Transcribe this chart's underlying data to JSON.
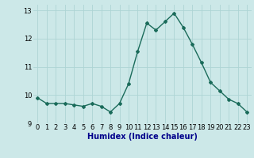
{
  "x": [
    0,
    1,
    2,
    3,
    4,
    5,
    6,
    7,
    8,
    9,
    10,
    11,
    12,
    13,
    14,
    15,
    16,
    17,
    18,
    19,
    20,
    21,
    22,
    23
  ],
  "y": [
    9.9,
    9.7,
    9.7,
    9.7,
    9.65,
    9.6,
    9.7,
    9.6,
    9.4,
    9.7,
    10.4,
    11.55,
    12.55,
    12.3,
    12.6,
    12.9,
    12.4,
    11.8,
    11.15,
    10.45,
    10.15,
    9.85,
    9.7,
    9.4
  ],
  "xlabel": "Humidex (Indice chaleur)",
  "xlim": [
    -0.5,
    23.5
  ],
  "ylim": [
    9.0,
    13.2
  ],
  "yticks": [
    9,
    10,
    11,
    12,
    13
  ],
  "xticks": [
    0,
    1,
    2,
    3,
    4,
    5,
    6,
    7,
    8,
    9,
    10,
    11,
    12,
    13,
    14,
    15,
    16,
    17,
    18,
    19,
    20,
    21,
    22,
    23
  ],
  "line_color": "#1a6b5a",
  "bg_color": "#cce8e8",
  "grid_color": "#aed4d4",
  "marker": "D",
  "marker_size": 2.0,
  "line_width": 1.0,
  "tick_fontsize": 6.0,
  "xlabel_fontsize": 7.0,
  "xlabel_color": "#00008b"
}
